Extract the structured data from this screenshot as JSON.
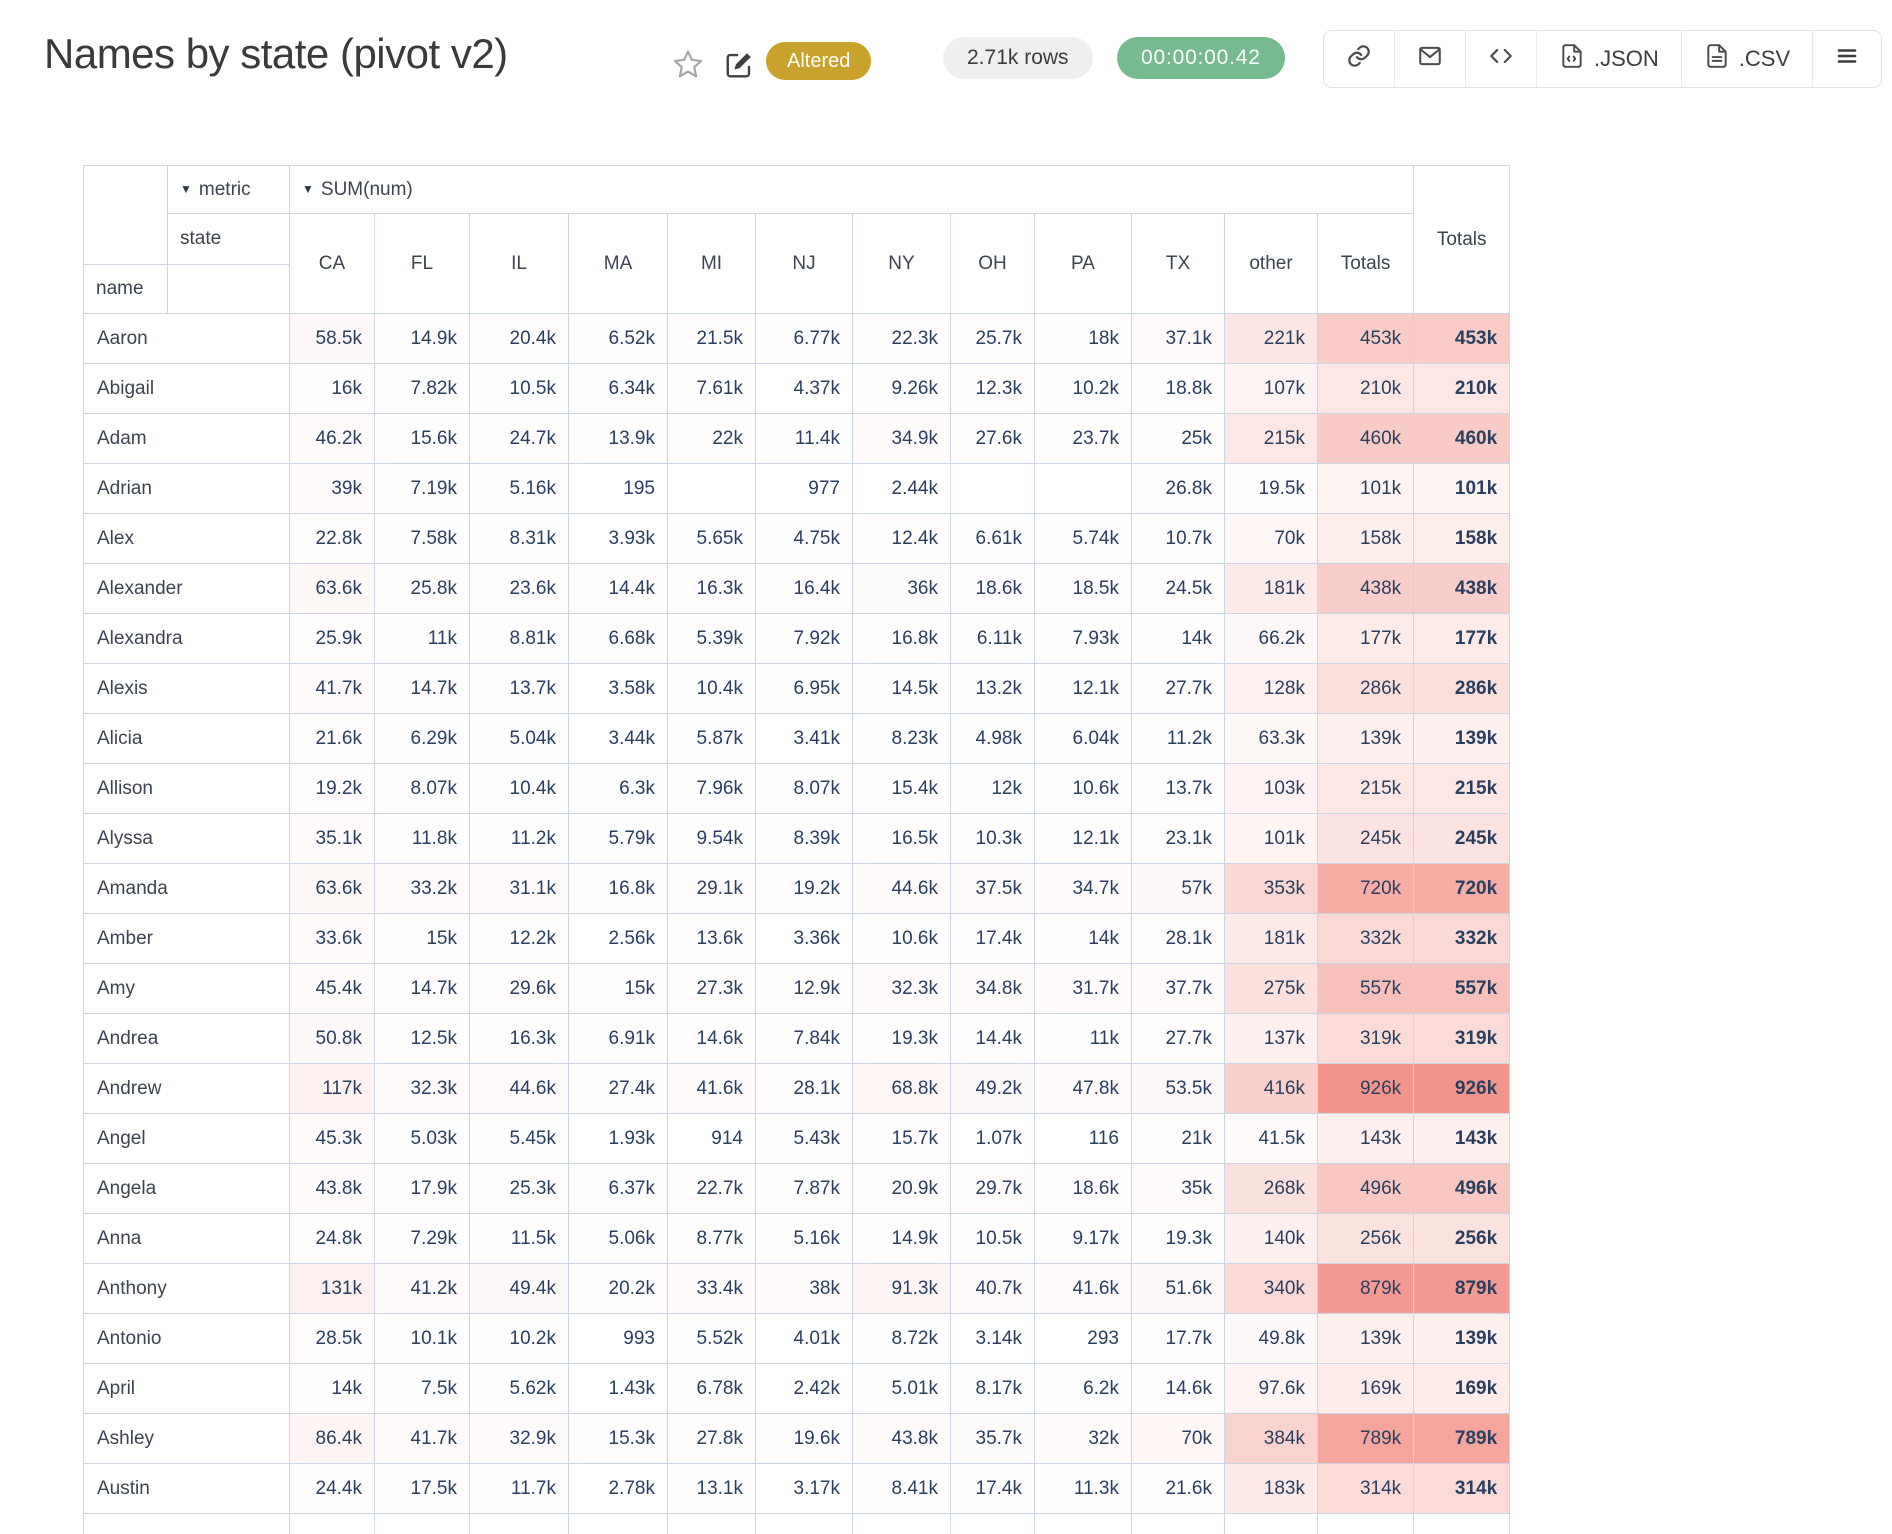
{
  "header": {
    "title": "Names by state (pivot v2)",
    "status_badge": "Altered",
    "rows_count": "2.71k rows",
    "duration": "00:00:00.42",
    "toolbar": {
      "json_label": ".JSON",
      "csv_label": ".CSV"
    }
  },
  "colors": {
    "accent_altered": "#c9a22b",
    "rows_badge_bg": "#efefef",
    "timer_green": "#76bb8f",
    "heat_max": "#f2968c",
    "table_border": "#cbd5e3",
    "number_text": "#2a3f5f"
  },
  "pivot": {
    "dropdown_arrow": "▼",
    "aggregator_axis_label": "metric",
    "aggregator_value": "SUM(num)",
    "col_axis_label": "state",
    "row_axis_label": "name",
    "col_headers": [
      "CA",
      "FL",
      "IL",
      "MA",
      "MI",
      "NJ",
      "NY",
      "OH",
      "PA",
      "TX",
      "other",
      "Totals"
    ],
    "row_totals_header": "Totals",
    "rows": [
      {
        "name": "Aaron",
        "values": [
          "58.5k",
          "14.9k",
          "20.4k",
          "6.52k",
          "21.5k",
          "6.77k",
          "22.3k",
          "25.7k",
          "18k",
          "37.1k",
          "221k",
          "453k"
        ],
        "total": "453k"
      },
      {
        "name": "Abigail",
        "values": [
          "16k",
          "7.82k",
          "10.5k",
          "6.34k",
          "7.61k",
          "4.37k",
          "9.26k",
          "12.3k",
          "10.2k",
          "18.8k",
          "107k",
          "210k"
        ],
        "total": "210k"
      },
      {
        "name": "Adam",
        "values": [
          "46.2k",
          "15.6k",
          "24.7k",
          "13.9k",
          "22k",
          "11.4k",
          "34.9k",
          "27.6k",
          "23.7k",
          "25k",
          "215k",
          "460k"
        ],
        "total": "460k"
      },
      {
        "name": "Adrian",
        "values": [
          "39k",
          "7.19k",
          "5.16k",
          "195",
          "",
          "977",
          "2.44k",
          "",
          "",
          "26.8k",
          "19.5k",
          "101k"
        ],
        "total": "101k"
      },
      {
        "name": "Alex",
        "values": [
          "22.8k",
          "7.58k",
          "8.31k",
          "3.93k",
          "5.65k",
          "4.75k",
          "12.4k",
          "6.61k",
          "5.74k",
          "10.7k",
          "70k",
          "158k"
        ],
        "total": "158k"
      },
      {
        "name": "Alexander",
        "values": [
          "63.6k",
          "25.8k",
          "23.6k",
          "14.4k",
          "16.3k",
          "16.4k",
          "36k",
          "18.6k",
          "18.5k",
          "24.5k",
          "181k",
          "438k"
        ],
        "total": "438k"
      },
      {
        "name": "Alexandra",
        "values": [
          "25.9k",
          "11k",
          "8.81k",
          "6.68k",
          "5.39k",
          "7.92k",
          "16.8k",
          "6.11k",
          "7.93k",
          "14k",
          "66.2k",
          "177k"
        ],
        "total": "177k"
      },
      {
        "name": "Alexis",
        "values": [
          "41.7k",
          "14.7k",
          "13.7k",
          "3.58k",
          "10.4k",
          "6.95k",
          "14.5k",
          "13.2k",
          "12.1k",
          "27.7k",
          "128k",
          "286k"
        ],
        "total": "286k"
      },
      {
        "name": "Alicia",
        "values": [
          "21.6k",
          "6.29k",
          "5.04k",
          "3.44k",
          "5.87k",
          "3.41k",
          "8.23k",
          "4.98k",
          "6.04k",
          "11.2k",
          "63.3k",
          "139k"
        ],
        "total": "139k"
      },
      {
        "name": "Allison",
        "values": [
          "19.2k",
          "8.07k",
          "10.4k",
          "6.3k",
          "7.96k",
          "8.07k",
          "15.4k",
          "12k",
          "10.6k",
          "13.7k",
          "103k",
          "215k"
        ],
        "total": "215k"
      },
      {
        "name": "Alyssa",
        "values": [
          "35.1k",
          "11.8k",
          "11.2k",
          "5.79k",
          "9.54k",
          "8.39k",
          "16.5k",
          "10.3k",
          "12.1k",
          "23.1k",
          "101k",
          "245k"
        ],
        "total": "245k"
      },
      {
        "name": "Amanda",
        "values": [
          "63.6k",
          "33.2k",
          "31.1k",
          "16.8k",
          "29.1k",
          "19.2k",
          "44.6k",
          "37.5k",
          "34.7k",
          "57k",
          "353k",
          "720k"
        ],
        "total": "720k"
      },
      {
        "name": "Amber",
        "values": [
          "33.6k",
          "15k",
          "12.2k",
          "2.56k",
          "13.6k",
          "3.36k",
          "10.6k",
          "17.4k",
          "14k",
          "28.1k",
          "181k",
          "332k"
        ],
        "total": "332k"
      },
      {
        "name": "Amy",
        "values": [
          "45.4k",
          "14.7k",
          "29.6k",
          "15k",
          "27.3k",
          "12.9k",
          "32.3k",
          "34.8k",
          "31.7k",
          "37.7k",
          "275k",
          "557k"
        ],
        "total": "557k"
      },
      {
        "name": "Andrea",
        "values": [
          "50.8k",
          "12.5k",
          "16.3k",
          "6.91k",
          "14.6k",
          "7.84k",
          "19.3k",
          "14.4k",
          "11k",
          "27.7k",
          "137k",
          "319k"
        ],
        "total": "319k"
      },
      {
        "name": "Andrew",
        "values": [
          "117k",
          "32.3k",
          "44.6k",
          "27.4k",
          "41.6k",
          "28.1k",
          "68.8k",
          "49.2k",
          "47.8k",
          "53.5k",
          "416k",
          "926k"
        ],
        "total": "926k"
      },
      {
        "name": "Angel",
        "values": [
          "45.3k",
          "5.03k",
          "5.45k",
          "1.93k",
          "914",
          "5.43k",
          "15.7k",
          "1.07k",
          "116",
          "21k",
          "41.5k",
          "143k"
        ],
        "total": "143k"
      },
      {
        "name": "Angela",
        "values": [
          "43.8k",
          "17.9k",
          "25.3k",
          "6.37k",
          "22.7k",
          "7.87k",
          "20.9k",
          "29.7k",
          "18.6k",
          "35k",
          "268k",
          "496k"
        ],
        "total": "496k"
      },
      {
        "name": "Anna",
        "values": [
          "24.8k",
          "7.29k",
          "11.5k",
          "5.06k",
          "8.77k",
          "5.16k",
          "14.9k",
          "10.5k",
          "9.17k",
          "19.3k",
          "140k",
          "256k"
        ],
        "total": "256k"
      },
      {
        "name": "Anthony",
        "values": [
          "131k",
          "41.2k",
          "49.4k",
          "20.2k",
          "33.4k",
          "38k",
          "91.3k",
          "40.7k",
          "41.6k",
          "51.6k",
          "340k",
          "879k"
        ],
        "total": "879k"
      },
      {
        "name": "Antonio",
        "values": [
          "28.5k",
          "10.1k",
          "10.2k",
          "993",
          "5.52k",
          "4.01k",
          "8.72k",
          "3.14k",
          "293",
          "17.7k",
          "49.8k",
          "139k"
        ],
        "total": "139k"
      },
      {
        "name": "April",
        "values": [
          "14k",
          "7.5k",
          "5.62k",
          "1.43k",
          "6.78k",
          "2.42k",
          "5.01k",
          "8.17k",
          "6.2k",
          "14.6k",
          "97.6k",
          "169k"
        ],
        "total": "169k"
      },
      {
        "name": "Ashley",
        "values": [
          "86.4k",
          "41.7k",
          "32.9k",
          "15.3k",
          "27.8k",
          "19.6k",
          "43.8k",
          "35.7k",
          "32k",
          "70k",
          "384k",
          "789k"
        ],
        "total": "789k"
      },
      {
        "name": "Austin",
        "values": [
          "24.4k",
          "17.5k",
          "11.7k",
          "2.78k",
          "13.1k",
          "3.17k",
          "8.41k",
          "17.4k",
          "11.3k",
          "21.6k",
          "183k",
          "314k"
        ],
        "total": "314k"
      }
    ],
    "partial_row": true
  }
}
